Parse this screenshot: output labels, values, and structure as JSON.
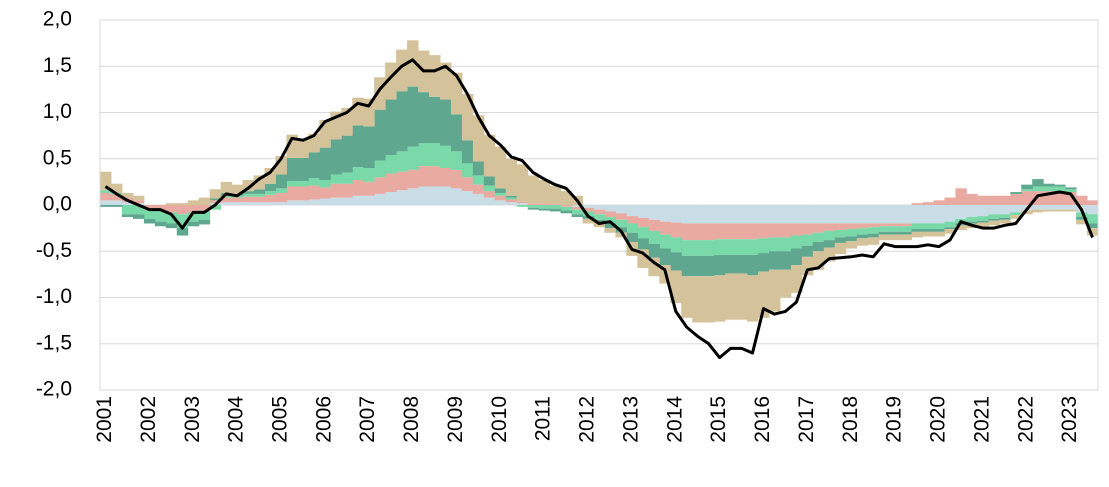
{
  "chart_data": {
    "type": "bar",
    "stacked": true,
    "categories": [
      "2001",
      null,
      null,
      null,
      "2002",
      null,
      null,
      null,
      "2003",
      null,
      null,
      null,
      "2004",
      null,
      null,
      null,
      "2005",
      null,
      null,
      null,
      "2006",
      null,
      null,
      null,
      "2007",
      null,
      null,
      null,
      "2008",
      null,
      null,
      null,
      "2009",
      null,
      null,
      null,
      "2010",
      null,
      null,
      null,
      "2011",
      null,
      null,
      null,
      "2012",
      null,
      null,
      null,
      "2013",
      null,
      null,
      null,
      "2014",
      null,
      null,
      null,
      "2015",
      null,
      null,
      null,
      "2016",
      null,
      null,
      null,
      "2017",
      null,
      null,
      null,
      "2018",
      null,
      null,
      null,
      "2019",
      null,
      null,
      null,
      "2020",
      null,
      null,
      null,
      "2021",
      null,
      null,
      null,
      "2022",
      null,
      null,
      null,
      "2023",
      null,
      null
    ],
    "ylim": [
      -2,
      2
    ],
    "yticks": [
      {
        "value": -2,
        "label": "-2,0"
      },
      {
        "value": -1.5,
        "label": "-1,5"
      },
      {
        "value": -1,
        "label": "-1,0"
      },
      {
        "value": -0.5,
        "label": "-0,5"
      },
      {
        "value": 0,
        "label": "0,0"
      },
      {
        "value": 0.5,
        "label": "0,5"
      },
      {
        "value": 1,
        "label": "1,0"
      },
      {
        "value": 1.5,
        "label": "1,5"
      },
      {
        "value": 2,
        "label": "2,0"
      }
    ],
    "grid": true,
    "series": [
      {
        "kind": "bar",
        "color": "#c9dde6",
        "values": [
          0.05,
          0.05,
          0.03,
          0.02,
          0,
          0,
          0,
          0,
          0,
          0,
          0.02,
          0.03,
          0.03,
          0.03,
          0.03,
          0.03,
          0.03,
          0.05,
          0.05,
          0.06,
          0.07,
          0.08,
          0.08,
          0.1,
          0.1,
          0.12,
          0.14,
          0.16,
          0.18,
          0.2,
          0.2,
          0.2,
          0.18,
          0.15,
          0.12,
          0.08,
          0.05,
          0.03,
          0.02,
          0,
          0,
          0,
          0,
          -0.02,
          -0.03,
          -0.05,
          -0.07,
          -0.09,
          -0.12,
          -0.14,
          -0.16,
          -0.18,
          -0.19,
          -0.2,
          -0.2,
          -0.2,
          -0.2,
          -0.2,
          -0.2,
          -0.2,
          -0.2,
          -0.2,
          -0.2,
          -0.2,
          -0.2,
          -0.2,
          -0.2,
          -0.2,
          -0.2,
          -0.2,
          -0.2,
          -0.2,
          -0.2,
          -0.2,
          -0.2,
          -0.2,
          -0.2,
          -0.18,
          -0.15,
          -0.13,
          -0.12,
          -0.1,
          -0.1,
          -0.08,
          -0.06,
          -0.05,
          -0.05,
          -0.05,
          -0.05,
          -0.08,
          -0.1
        ]
      },
      {
        "kind": "bar",
        "color": "#e9aaa2",
        "values": [
          0.08,
          0.06,
          0.05,
          0.03,
          -0.05,
          -0.06,
          -0.08,
          -0.1,
          -0.08,
          -0.06,
          0.03,
          0.05,
          0.05,
          0.06,
          0.06,
          0.08,
          0.1,
          0.15,
          0.15,
          0.15,
          0.12,
          0.15,
          0.15,
          0.17,
          0.15,
          0.18,
          0.2,
          0.2,
          0.2,
          0.22,
          0.22,
          0.2,
          0.2,
          0.15,
          0.1,
          0.07,
          0.05,
          0.03,
          0.02,
          0.02,
          0.02,
          0.01,
          -0.02,
          -0.03,
          -0.04,
          -0.05,
          -0.06,
          -0.07,
          -0.08,
          -0.1,
          -0.12,
          -0.14,
          -0.16,
          -0.18,
          -0.18,
          -0.18,
          -0.17,
          -0.17,
          -0.17,
          -0.17,
          -0.16,
          -0.15,
          -0.15,
          -0.13,
          -0.12,
          -0.1,
          -0.08,
          -0.07,
          -0.06,
          -0.05,
          -0.04,
          -0.03,
          -0.03,
          -0.03,
          0.02,
          0.03,
          0.05,
          0.08,
          0.18,
          0.12,
          0.1,
          0.1,
          0.1,
          0.12,
          0.15,
          0.15,
          0.15,
          0.15,
          0.14,
          0.1,
          0.05
        ]
      },
      {
        "kind": "bar",
        "color": "#79d9a8",
        "values": [
          0.03,
          0.02,
          -0.1,
          -0.1,
          -0.1,
          -0.12,
          -0.12,
          -0.15,
          -0.1,
          -0.1,
          -0.05,
          0.02,
          0.02,
          0.03,
          0.03,
          0.04,
          0.05,
          0.06,
          0.06,
          0.08,
          0.08,
          0.1,
          0.12,
          0.14,
          0.15,
          0.18,
          0.2,
          0.22,
          0.25,
          0.25,
          0.25,
          0.24,
          0.2,
          0.15,
          0.1,
          0.06,
          0.03,
          0.02,
          -0.02,
          -0.03,
          -0.04,
          -0.04,
          -0.04,
          -0.05,
          -0.05,
          -0.06,
          -0.07,
          -0.08,
          -0.1,
          -0.12,
          -0.14,
          -0.15,
          -0.16,
          -0.17,
          -0.17,
          -0.17,
          -0.17,
          -0.17,
          -0.17,
          -0.17,
          -0.16,
          -0.15,
          -0.15,
          -0.14,
          -0.12,
          -0.1,
          -0.1,
          -0.08,
          -0.08,
          -0.07,
          -0.07,
          -0.06,
          -0.06,
          -0.06,
          -0.06,
          -0.06,
          -0.06,
          -0.06,
          -0.05,
          -0.05,
          -0.05,
          -0.05,
          -0.04,
          -0.03,
          0.02,
          0.05,
          0.05,
          0.05,
          0.03,
          -0.05,
          -0.1
        ]
      },
      {
        "kind": "bar",
        "color": "#5fa88f",
        "values": [
          -0.02,
          -0.02,
          -0.03,
          -0.05,
          -0.05,
          -0.05,
          -0.05,
          -0.08,
          -0.05,
          -0.05,
          0.02,
          0.03,
          0.02,
          0.03,
          0.05,
          0.08,
          0.15,
          0.25,
          0.25,
          0.28,
          0.35,
          0.38,
          0.4,
          0.45,
          0.45,
          0.55,
          0.6,
          0.65,
          0.65,
          0.55,
          0.5,
          0.5,
          0.4,
          0.25,
          0.15,
          0.1,
          0.05,
          0.02,
          0,
          -0.02,
          -0.02,
          -0.03,
          -0.03,
          -0.03,
          -0.03,
          -0.03,
          -0.05,
          -0.06,
          -0.1,
          -0.12,
          -0.15,
          -0.18,
          -0.2,
          -0.22,
          -0.22,
          -0.22,
          -0.22,
          -0.2,
          -0.2,
          -0.22,
          -0.2,
          -0.2,
          -0.2,
          -0.18,
          -0.12,
          -0.1,
          -0.08,
          -0.06,
          -0.05,
          -0.04,
          -0.04,
          -0.03,
          -0.03,
          -0.03,
          -0.03,
          -0.03,
          -0.03,
          -0.02,
          -0.02,
          -0.02,
          -0.02,
          -0.02,
          -0.02,
          0.02,
          0.05,
          0.08,
          0.03,
          0.02,
          0.02,
          -0.03,
          -0.05
        ]
      },
      {
        "kind": "bar",
        "color": "#d4c29a",
        "values": [
          0.2,
          0.1,
          0.05,
          0.05,
          0,
          0,
          0.02,
          0.02,
          0.05,
          0.08,
          0.1,
          0.12,
          0.1,
          0.12,
          0.15,
          0.17,
          0.2,
          0.25,
          0.2,
          0.2,
          0.3,
          0.3,
          0.3,
          0.3,
          0.3,
          0.35,
          0.4,
          0.45,
          0.5,
          0.45,
          0.45,
          0.4,
          0.45,
          0.5,
          0.5,
          0.45,
          0.45,
          0.4,
          0.4,
          0.3,
          0.25,
          0.2,
          0.15,
          0.1,
          -0.05,
          -0.05,
          -0.05,
          -0.05,
          -0.15,
          -0.2,
          -0.2,
          -0.2,
          -0.35,
          -0.45,
          -0.5,
          -0.5,
          -0.5,
          -0.5,
          -0.5,
          -0.5,
          -0.5,
          -0.45,
          -0.3,
          -0.3,
          -0.2,
          -0.2,
          -0.15,
          -0.12,
          -0.08,
          -0.08,
          -0.08,
          -0.06,
          -0.06,
          -0.06,
          -0.06,
          -0.05,
          -0.05,
          -0.05,
          -0.05,
          -0.05,
          -0.05,
          -0.05,
          -0.04,
          -0.04,
          -0.04,
          -0.03,
          -0.02,
          -0.02,
          -0.02,
          -0.05,
          -0.08
        ]
      },
      {
        "kind": "line",
        "color": "#000000",
        "values": [
          0.2,
          0.12,
          0.05,
          0,
          -0.05,
          -0.05,
          -0.1,
          -0.25,
          -0.08,
          -0.08,
          0,
          0.12,
          0.1,
          0.18,
          0.28,
          0.35,
          0.5,
          0.72,
          0.7,
          0.75,
          0.9,
          0.95,
          1,
          1.1,
          1.07,
          1.25,
          1.38,
          1.5,
          1.57,
          1.45,
          1.45,
          1.5,
          1.4,
          1.2,
          0.95,
          0.75,
          0.65,
          0.52,
          0.48,
          0.35,
          0.28,
          0.22,
          0.18,
          0.05,
          -0.12,
          -0.2,
          -0.18,
          -0.28,
          -0.48,
          -0.52,
          -0.62,
          -0.7,
          -1.15,
          -1.32,
          -1.42,
          -1.5,
          -1.65,
          -1.55,
          -1.55,
          -1.6,
          -1.12,
          -1.18,
          -1.15,
          -1.05,
          -0.7,
          -0.68,
          -0.58,
          -0.57,
          -0.56,
          -0.54,
          -0.56,
          -0.42,
          -0.45,
          -0.45,
          -0.45,
          -0.43,
          -0.45,
          -0.38,
          -0.18,
          -0.22,
          -0.25,
          -0.25,
          -0.22,
          -0.2,
          -0.05,
          0.1,
          0.12,
          0.14,
          0.12,
          -0.05,
          -0.35
        ]
      }
    ]
  }
}
